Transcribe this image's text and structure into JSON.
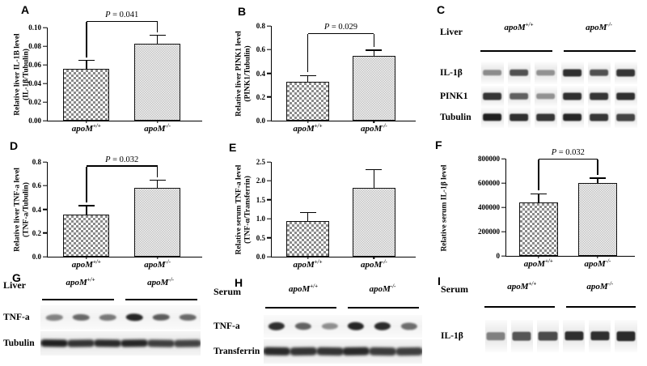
{
  "panels": {
    "A": {
      "letter": "A"
    },
    "B": {
      "letter": "B"
    },
    "C": {
      "letter": "C"
    },
    "D": {
      "letter": "D"
    },
    "E": {
      "letter": "E"
    },
    "F": {
      "letter": "F"
    },
    "G": {
      "letter": "G"
    },
    "H": {
      "letter": "H"
    },
    "I": {
      "letter": "I"
    }
  },
  "chart_data": [
    {
      "id": "A",
      "type": "bar",
      "ylabel_lines": [
        "Relative liver IL-1B level",
        "(IL-1β/Tubulin)"
      ],
      "categories": [
        {
          "base": "apoM",
          "sup": "+/+"
        },
        {
          "base": "apoM",
          "sup": "-/-"
        }
      ],
      "values": [
        0.056,
        0.083
      ],
      "errors": [
        0.008,
        0.008
      ],
      "ylim": [
        0,
        0.1
      ],
      "yticks": [
        0,
        0.02,
        0.04,
        0.06,
        0.08,
        0.1
      ],
      "ytick_labels": [
        "0.00",
        "0.02",
        "0.04",
        "0.06",
        "0.08",
        "0.10"
      ],
      "p_label": "P = 0.041",
      "bracket_y": 0.106,
      "grid": false,
      "legend": null
    },
    {
      "id": "B",
      "type": "bar",
      "ylabel_lines": [
        "Relative liver PINK1 level",
        "(PINK1/Tubulin)"
      ],
      "categories": [
        {
          "base": "apoM",
          "sup": "+/+"
        },
        {
          "base": "apoM",
          "sup": "-/-"
        }
      ],
      "values": [
        0.33,
        0.55
      ],
      "errors": [
        0.045,
        0.04
      ],
      "ylim": [
        0,
        0.8
      ],
      "yticks": [
        0,
        0.2,
        0.4,
        0.6,
        0.8
      ],
      "ytick_labels": [
        "0.0",
        "0.2",
        "0.4",
        "0.6",
        "0.8"
      ],
      "p_label": "P = 0.029",
      "bracket_y": 0.73,
      "grid": false,
      "legend": null
    },
    {
      "id": "D",
      "type": "bar",
      "ylabel_lines": [
        "Relative liver TNF-a level",
        "(TNF-a/Tubulin)"
      ],
      "categories": [
        {
          "base": "apoM",
          "sup": "+/+"
        },
        {
          "base": "apoM",
          "sup": "-/-"
        }
      ],
      "values": [
        0.355,
        0.58
      ],
      "errors": [
        0.07,
        0.06
      ],
      "ylim": [
        0,
        0.8
      ],
      "yticks": [
        0,
        0.2,
        0.4,
        0.6,
        0.8
      ],
      "ytick_labels": [
        "0.0",
        "0.2",
        "0.4",
        "0.6",
        "0.8"
      ],
      "p_label": "P = 0.032",
      "bracket_y": 0.76,
      "grid": false,
      "legend": null
    },
    {
      "id": "E",
      "type": "bar",
      "ylabel_lines": [
        "Relative serum TNF-a level",
        "(TNF-α/Transferrin)"
      ],
      "categories": [
        {
          "base": "apoM",
          "sup": "+/+"
        },
        {
          "base": "apoM",
          "sup": "-/-"
        }
      ],
      "values": [
        0.94,
        1.82
      ],
      "errors": [
        0.21,
        0.46
      ],
      "ylim": [
        0,
        2.5
      ],
      "yticks": [
        0,
        0.5,
        1.0,
        1.5,
        2.0,
        2.5
      ],
      "ytick_labels": [
        "0.0",
        "0.5",
        "1.0",
        "1.5",
        "2.0",
        "2.5"
      ],
      "p_label": null,
      "bracket_y": null,
      "grid": false,
      "legend": null
    },
    {
      "id": "F",
      "type": "bar",
      "ylabel_lines": [
        "Relative serum IL-1β level"
      ],
      "categories": [
        {
          "base": "apoM",
          "sup": "+/+"
        },
        {
          "base": "apoM",
          "sup": "-/-"
        }
      ],
      "values": [
        443000,
        598000
      ],
      "errors": [
        62000,
        38000
      ],
      "ylim": [
        0,
        800000
      ],
      "yticks": [
        0,
        200000,
        400000,
        600000,
        800000
      ],
      "ytick_labels": [
        "0",
        "200000",
        "400000",
        "600000",
        "800000"
      ],
      "p_label": "P = 0.032",
      "bracket_y": 792000,
      "grid": false,
      "legend": null
    }
  ],
  "blots": [
    {
      "id": "C",
      "tissue": "Liver",
      "groups": [
        {
          "base": "apoM",
          "sup": "+/+"
        },
        {
          "base": "apoM",
          "sup": "-/-"
        }
      ],
      "rows": [
        {
          "label": "IL-1β",
          "style": "clean",
          "bands": [
            0.45,
            0.72,
            0.42,
            0.88,
            0.72,
            0.85
          ]
        },
        {
          "label": "PINK1",
          "style": "clean",
          "bands": [
            0.85,
            0.65,
            0.42,
            0.88,
            0.85,
            0.88
          ]
        },
        {
          "label": "Tubulin",
          "style": "clean",
          "bands": [
            0.95,
            0.88,
            0.85,
            0.92,
            0.85,
            0.78
          ]
        }
      ]
    },
    {
      "id": "G",
      "tissue": "Liver",
      "groups": [
        {
          "base": "apoM",
          "sup": "+/+"
        },
        {
          "base": "apoM",
          "sup": "-/-"
        }
      ],
      "rows": [
        {
          "label": "TNF-a",
          "style": "wavy",
          "bands": [
            0.5,
            0.62,
            0.55,
            0.92,
            0.68,
            0.62
          ]
        },
        {
          "label": "Tubulin",
          "style": "smear",
          "bands": [
            0.95,
            0.85,
            0.9,
            0.92,
            0.8,
            0.78
          ]
        }
      ]
    },
    {
      "id": "H",
      "tissue": "Serum",
      "groups": [
        {
          "base": "apoM",
          "sup": "+/+"
        },
        {
          "base": "apoM",
          "sup": "-/-"
        }
      ],
      "rows": [
        {
          "label": "TNF-a",
          "style": "wavy",
          "bands": [
            0.88,
            0.65,
            0.45,
            0.92,
            0.9,
            0.6
          ]
        },
        {
          "label": "Transferrin",
          "style": "smear",
          "bands": [
            0.9,
            0.85,
            0.85,
            0.9,
            0.82,
            0.8
          ]
        }
      ]
    },
    {
      "id": "I",
      "tissue": "Serum",
      "groups": [
        {
          "base": "apoM",
          "sup": "+/+"
        },
        {
          "base": "apoM",
          "sup": "-/-"
        }
      ],
      "rows": [
        {
          "label": "IL-1β",
          "style": "clean",
          "bands": [
            0.5,
            0.7,
            0.75,
            0.88,
            0.88,
            0.9
          ]
        }
      ]
    }
  ]
}
